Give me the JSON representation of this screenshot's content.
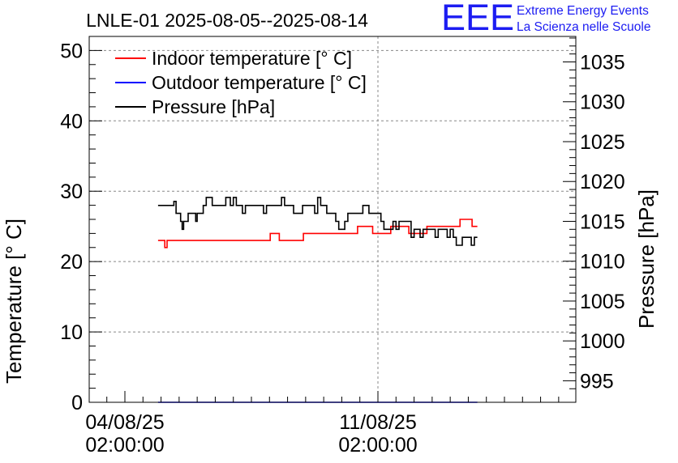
{
  "chart_data": {
    "type": "line",
    "title": "LNLE-01 2025-08-05--2025-08-14",
    "ylabel": "Temperature [° C]",
    "y2label": "Pressure [hPa]",
    "ylim": [
      0,
      52
    ],
    "y2lim": [
      992.3,
      1038.2
    ],
    "y_ticks": [
      "0",
      "10",
      "20",
      "30",
      "40",
      "50"
    ],
    "y2_ticks": [
      "995",
      "1000",
      "1005",
      "1010",
      "1015",
      "1020",
      "1025",
      "1030",
      "1035"
    ],
    "x_ticks": [
      {
        "x": 0,
        "date": "04/08/25",
        "time": "02:00:00"
      },
      {
        "x": 168,
        "date": "11/08/25",
        "time": "02:00:00"
      }
    ],
    "grid": true,
    "legend_position": "top-left",
    "series": [
      {
        "name": "Indoor temperature [° C]",
        "color": "#ff0000",
        "axis": "left",
        "x": [
          22,
          26,
          26.5,
          27.5,
          28,
          96,
          96.5,
          102,
          102.5,
          118,
          118.5,
          154,
          154.5,
          164,
          164.5,
          176,
          176.5,
          182,
          182.5,
          188,
          188.5,
          189,
          189.5,
          200,
          200.5,
          201,
          201.5,
          202,
          202.5,
          222,
          222.5,
          226,
          226.5,
          230,
          230.5,
          234
        ],
        "y": [
          23,
          23,
          22,
          22,
          23,
          23,
          24,
          24,
          23,
          23,
          24,
          24,
          25,
          25,
          24,
          24,
          25,
          25,
          25,
          25,
          24,
          24,
          24,
          24,
          25,
          25,
          25,
          25,
          25,
          25,
          26,
          26,
          26,
          26,
          25,
          25
        ]
      },
      {
        "name": "Outdoor temperature [° C]",
        "color": "#0000ff",
        "axis": "left",
        "x": [
          22,
          234
        ],
        "y": [
          0,
          0
        ]
      },
      {
        "name": "Pressure [hPa]",
        "color": "#000000",
        "axis": "right",
        "x": [
          22,
          32,
          32.5,
          34,
          35,
          37,
          38,
          39,
          40,
          41,
          42,
          46,
          47,
          48,
          50,
          52,
          54,
          56,
          58,
          60,
          66,
          67,
          68,
          70,
          72,
          74,
          76,
          78,
          80,
          86,
          88,
          90,
          92,
          94,
          98,
          102,
          104,
          106,
          110,
          112,
          118,
          122,
          126,
          128,
          130,
          132,
          134,
          136,
          140,
          142,
          146,
          148,
          152,
          154,
          158,
          160,
          162,
          166,
          170,
          172,
          174,
          176,
          178,
          180,
          182,
          186,
          188,
          190,
          192,
          194,
          196,
          198,
          200,
          202,
          204,
          206,
          208,
          210,
          212,
          214,
          216,
          218,
          220,
          224,
          226,
          228,
          230,
          232,
          234
        ],
        "y": [
          1017,
          1017,
          1017.5,
          1016,
          1016,
          1015,
          1014,
          1015,
          1015,
          1015,
          1016,
          1016,
          1015,
          1016,
          1016,
          1017,
          1018,
          1018,
          1017,
          1017,
          1017,
          1018,
          1018,
          1017,
          1018,
          1017,
          1017,
          1016,
          1017,
          1017,
          1017,
          1017,
          1016,
          1017,
          1017,
          1017,
          1018,
          1017,
          1017,
          1016,
          1017,
          1017,
          1016,
          1018,
          1017,
          1017,
          1016,
          1016,
          1015,
          1014,
          1015,
          1016,
          1016,
          1016,
          1017,
          1017,
          1016,
          1016,
          1015,
          1014,
          1014,
          1014,
          1015,
          1014,
          1015,
          1015,
          1015,
          1013,
          1014,
          1014,
          1013,
          1014,
          1014,
          1014,
          1014,
          1013,
          1014,
          1014,
          1014,
          1013,
          1014,
          1013,
          1012,
          1013,
          1013,
          1013,
          1012,
          1013,
          1013
        ]
      }
    ]
  },
  "logo": {
    "mark": "EEE",
    "line1": "Extreme Energy Events",
    "line2": "La Scienza nelle Scuole"
  },
  "colors": {
    "logo_blue": "#1c1cf2",
    "indoor": "#ff0000",
    "outdoor": "#0000ff",
    "pressure": "#000000"
  }
}
